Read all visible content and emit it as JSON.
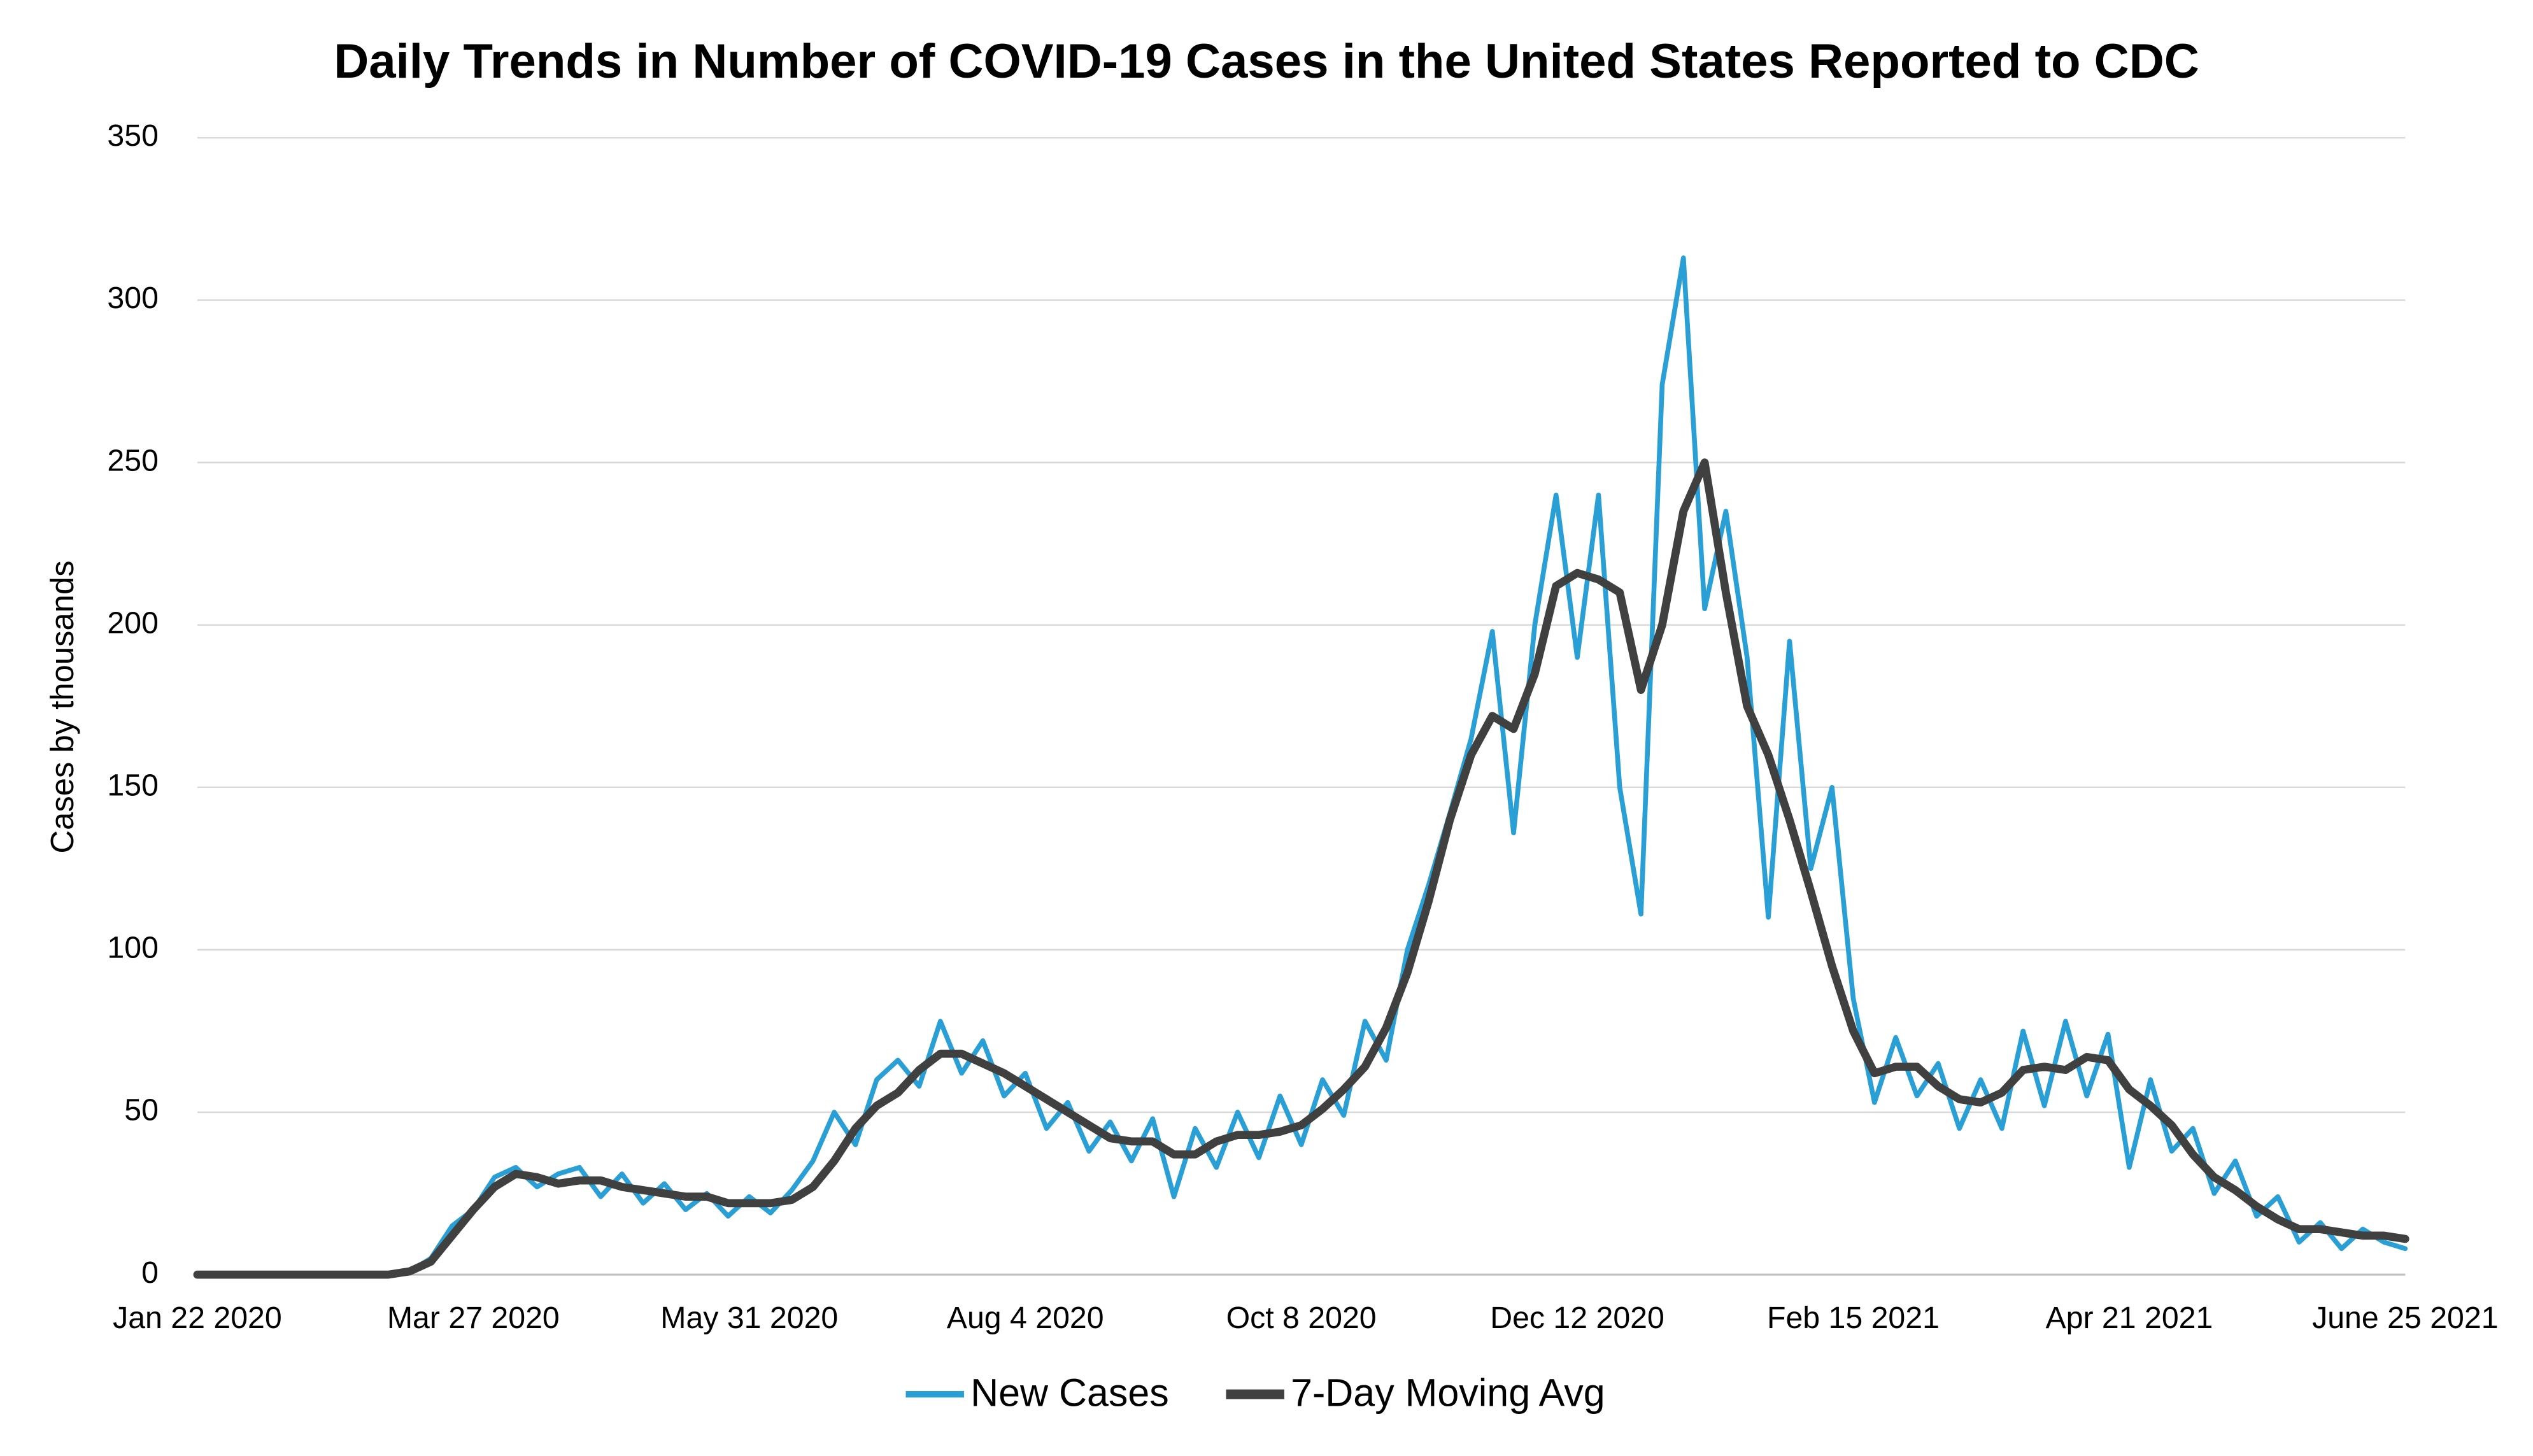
{
  "chart_data": {
    "type": "line",
    "title": "Daily Trends in Number of COVID-19 Cases in the United States Reported to CDC",
    "y_label": "Cases by thousands",
    "categories": [
      "Jan 22 2020",
      null,
      null,
      null,
      null,
      null,
      null,
      null,
      null,
      null,
      null,
      null,
      null,
      "Mar 27 2020",
      null,
      null,
      null,
      null,
      null,
      null,
      null,
      null,
      null,
      null,
      null,
      null,
      "May 31 2020",
      null,
      null,
      null,
      null,
      null,
      null,
      null,
      null,
      null,
      null,
      null,
      null,
      "Aug 4 2020",
      null,
      null,
      null,
      null,
      null,
      null,
      null,
      null,
      null,
      null,
      null,
      null,
      "Oct 8 2020",
      null,
      null,
      null,
      null,
      null,
      null,
      null,
      null,
      null,
      null,
      null,
      null,
      "Dec 12 2020",
      null,
      null,
      null,
      null,
      null,
      null,
      null,
      null,
      null,
      null,
      null,
      null,
      "Feb 15 2021",
      null,
      null,
      null,
      null,
      null,
      null,
      null,
      null,
      null,
      null,
      null,
      null,
      "Apr 21 2021",
      null,
      null,
      null,
      null,
      null,
      null,
      null,
      null,
      null,
      null,
      null,
      null,
      "June 25 2021"
    ],
    "series": [
      {
        "name": "New Cases",
        "color": "#2a9fd6",
        "width": 3,
        "values": [
          0,
          0,
          0,
          0,
          0,
          0,
          0,
          0,
          0,
          0,
          1,
          5,
          15,
          20,
          30,
          33,
          27,
          31,
          33,
          24,
          31,
          22,
          28,
          20,
          25,
          18,
          24,
          19,
          26,
          35,
          50,
          40,
          60,
          66,
          58,
          78,
          62,
          72,
          55,
          62,
          45,
          53,
          38,
          47,
          35,
          48,
          24,
          45,
          33,
          50,
          36,
          55,
          40,
          60,
          49,
          78,
          66,
          100,
          120,
          142,
          165,
          198,
          136,
          200,
          240,
          190,
          240,
          150,
          111,
          274,
          313,
          205,
          235,
          190,
          110,
          195,
          125,
          150,
          85,
          53,
          73,
          55,
          65,
          45,
          60,
          45,
          75,
          52,
          78,
          55,
          74,
          33,
          60,
          38,
          45,
          25,
          35,
          18,
          24,
          10,
          16,
          8,
          14,
          10,
          8
        ]
      },
      {
        "name": "7-Day Moving Avg",
        "color": "#404040",
        "width": 5,
        "values": [
          0,
          0,
          0,
          0,
          0,
          0,
          0,
          0,
          0,
          0,
          1,
          4,
          12,
          20,
          27,
          31,
          30,
          28,
          29,
          29,
          27,
          26,
          25,
          24,
          24,
          22,
          22,
          22,
          23,
          27,
          35,
          45,
          52,
          56,
          63,
          68,
          68,
          65,
          62,
          58,
          54,
          50,
          46,
          42,
          41,
          41,
          37,
          37,
          41,
          43,
          43,
          44,
          46,
          51,
          57,
          64,
          76,
          93,
          115,
          140,
          160,
          172,
          168,
          185,
          212,
          216,
          214,
          210,
          180,
          200,
          235,
          250,
          210,
          175,
          160,
          140,
          118,
          95,
          75,
          62,
          64,
          64,
          58,
          54,
          53,
          56,
          63,
          64,
          63,
          67,
          66,
          57,
          52,
          46,
          37,
          30,
          26,
          21,
          17,
          14,
          14,
          13,
          12,
          12,
          11
        ]
      }
    ],
    "ylim": [
      0,
      350
    ],
    "yticks": [
      0,
      50,
      100,
      150,
      200,
      250,
      300,
      350
    ],
    "grid": true,
    "legend": "bottom"
  }
}
